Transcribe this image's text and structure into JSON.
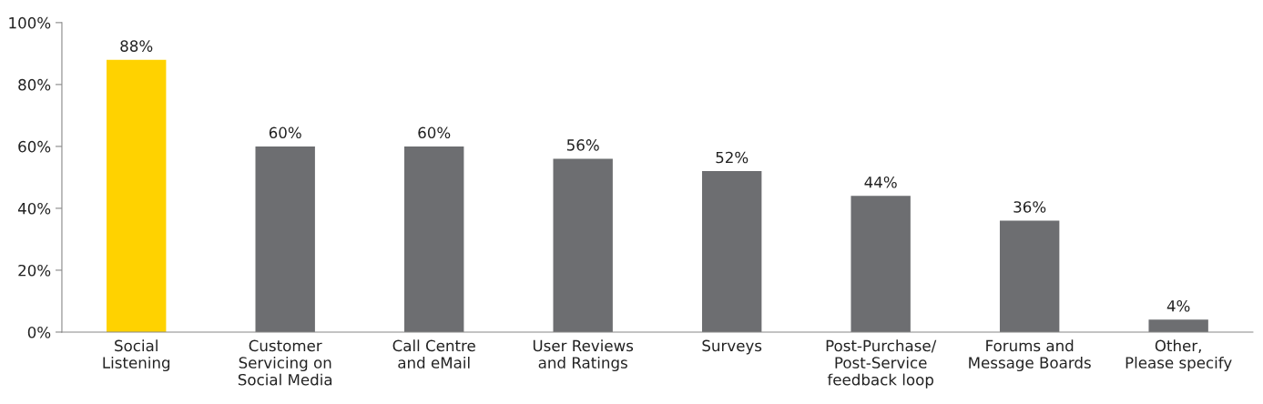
{
  "chart_data": {
    "type": "bar",
    "categories": [
      "Social\nListening",
      "Customer\nServicing on\nSocial Media",
      "Call Centre\nand eMail",
      "User Reviews\nand Ratings",
      "Surveys",
      "Post-Purchase/\nPost-Service\nfeedback loop",
      "Forums and\nMessage Boards",
      "Other,\nPlease specify"
    ],
    "values": [
      88,
      60,
      60,
      56,
      52,
      44,
      36,
      4
    ],
    "value_labels": [
      "88%",
      "60%",
      "60%",
      "56%",
      "52%",
      "44%",
      "36%",
      "4%"
    ],
    "colors": [
      "#ffd200",
      "#6d6e71",
      "#6d6e71",
      "#6d6e71",
      "#6d6e71",
      "#6d6e71",
      "#6d6e71",
      "#6d6e71"
    ],
    "ylim": [
      0,
      100
    ],
    "yticks": [
      {
        "value": 0,
        "label": "0%"
      },
      {
        "value": 20,
        "label": "20%"
      },
      {
        "value": 40,
        "label": "40%"
      },
      {
        "value": 60,
        "label": "60%"
      },
      {
        "value": 80,
        "label": "80%"
      },
      {
        "value": 100,
        "label": "100%"
      }
    ],
    "grid": false,
    "legend": false
  }
}
